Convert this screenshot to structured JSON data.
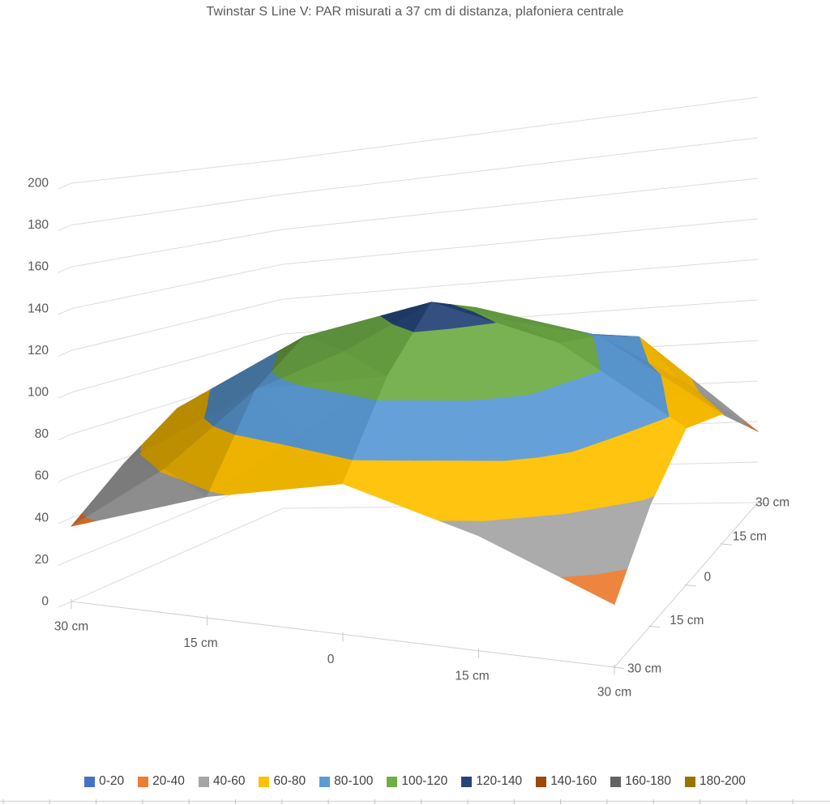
{
  "title": "Twinstar S Line V: PAR misurati a 37 cm di distanza, plafoniera centrale",
  "chart_data": {
    "type": "surface",
    "title": "Twinstar S Line V: PAR misurati a 37 cm di distanza, plafoniera centrale",
    "x_axis": {
      "labels": [
        "30 cm",
        "15 cm",
        "0",
        "15 cm",
        "30 cm"
      ]
    },
    "depth_axis": {
      "labels": [
        "30 cm",
        "15 cm",
        "0",
        "15 cm",
        "30 cm"
      ]
    },
    "z_axis": {
      "min": 0,
      "max": 200,
      "step": 20,
      "tick_labels": [
        "0",
        "20",
        "40",
        "60",
        "80",
        "100",
        "120",
        "140",
        "160",
        "180",
        "200"
      ]
    },
    "values": [
      [
        36,
        58,
        72,
        55,
        30
      ],
      [
        55,
        96,
        108,
        95,
        58
      ],
      [
        70,
        108,
        128,
        112,
        75
      ],
      [
        58,
        96,
        110,
        98,
        62
      ],
      [
        36,
        60,
        74,
        80,
        34
      ]
    ],
    "bands": [
      {
        "label": "0-20",
        "color": "#4472C4"
      },
      {
        "label": "20-40",
        "color": "#ED7D31"
      },
      {
        "label": "40-60",
        "color": "#A5A5A5"
      },
      {
        "label": "60-80",
        "color": "#FFC000"
      },
      {
        "label": "80-100",
        "color": "#5B9BD5"
      },
      {
        "label": "100-120",
        "color": "#70AD47"
      },
      {
        "label": "120-140",
        "color": "#264478"
      },
      {
        "label": "140-160",
        "color": "#9E480E"
      },
      {
        "label": "160-180",
        "color": "#636363"
      },
      {
        "label": "180-200",
        "color": "#997300"
      }
    ],
    "legend_position": "bottom",
    "grid": true
  }
}
